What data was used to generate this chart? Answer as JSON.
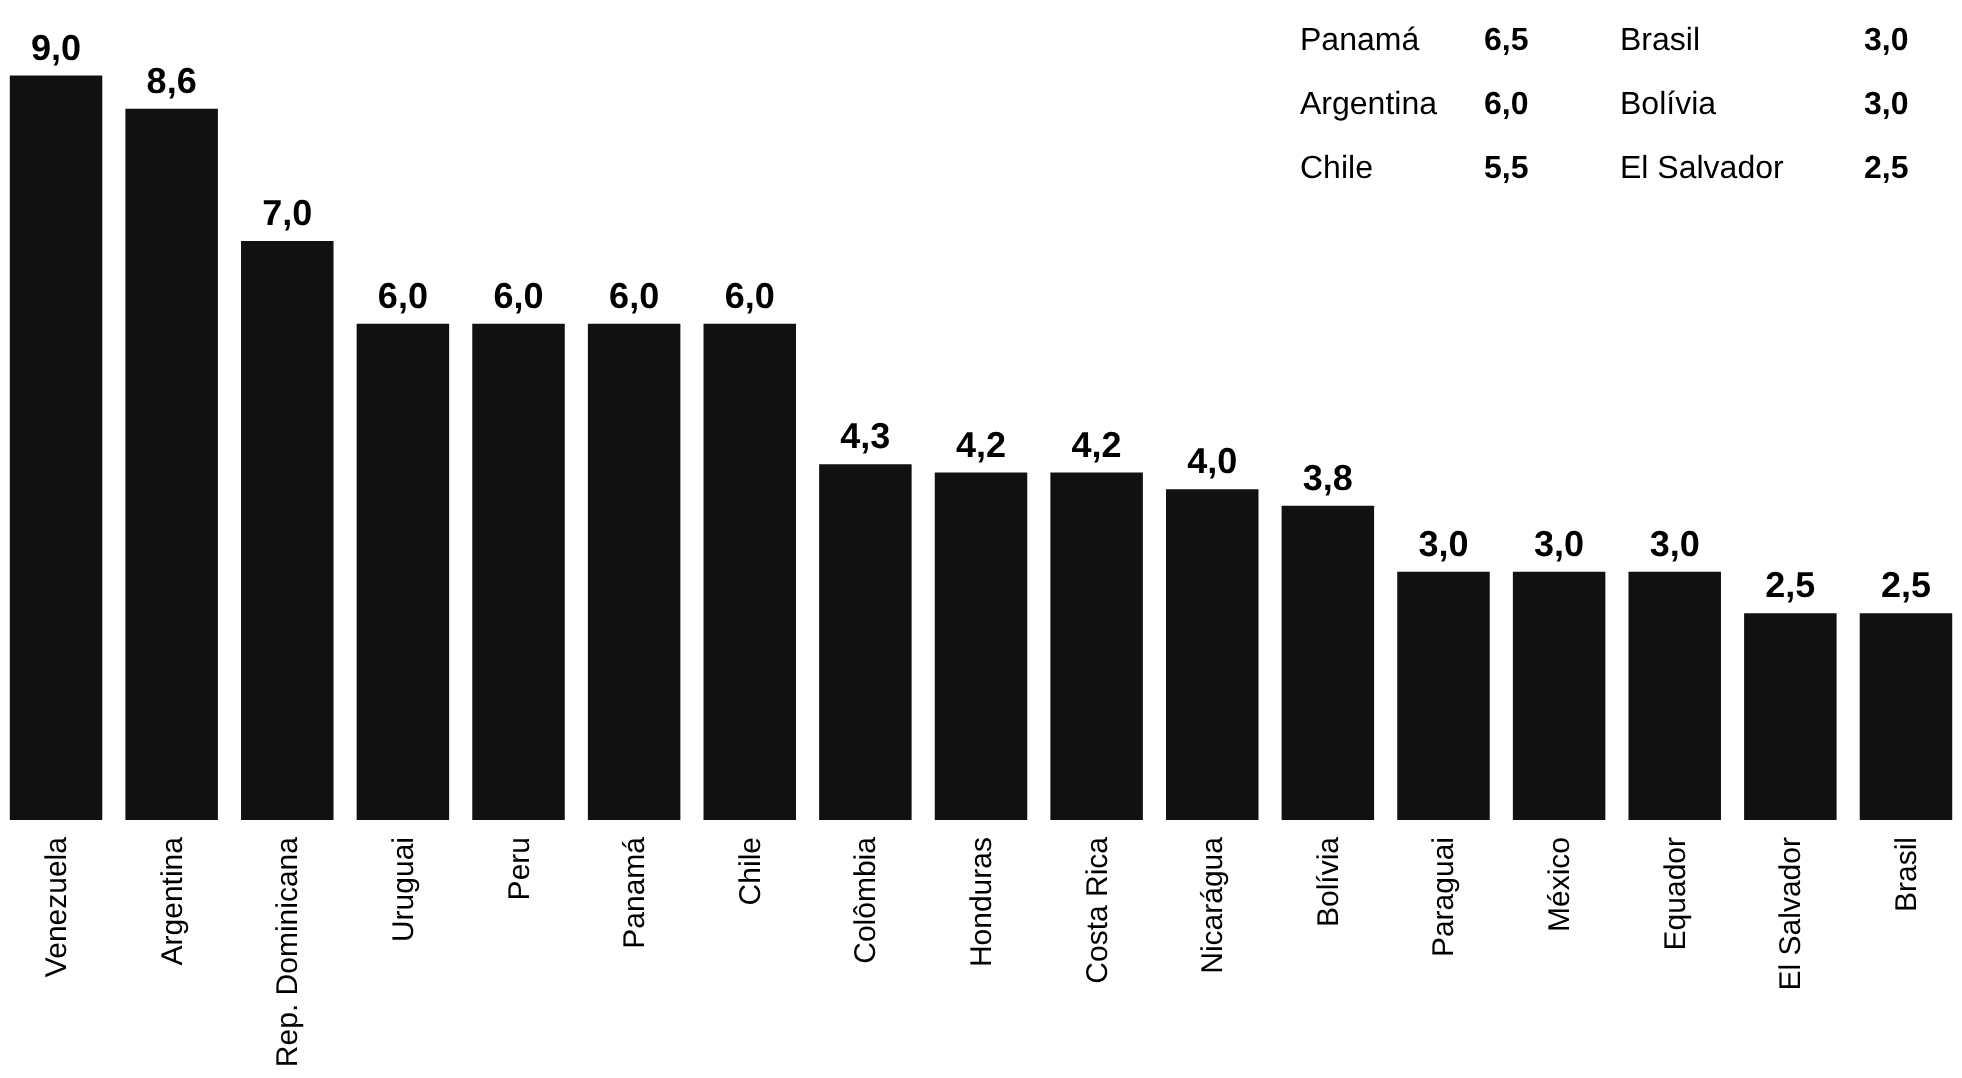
{
  "chart_data": {
    "type": "bar",
    "categories": [
      "Venezuela",
      "Argentina",
      "Rep. Dominicana",
      "Uruguai",
      "Peru",
      "Panamá",
      "Chile",
      "Colômbia",
      "Honduras",
      "Costa Rica",
      "Nicarágua",
      "Bolívia",
      "Paraguai",
      "México",
      "Equador",
      "El Salvador",
      "Brasil"
    ],
    "values": [
      9.0,
      8.6,
      7.0,
      6.0,
      6.0,
      6.0,
      6.0,
      4.3,
      4.2,
      4.2,
      4.0,
      3.8,
      3.0,
      3.0,
      3.0,
      2.5,
      2.5
    ],
    "value_labels": [
      "9,0",
      "8,6",
      "7,0",
      "6,0",
      "6,0",
      "6,0",
      "6,0",
      "4,3",
      "4,2",
      "4,2",
      "4,0",
      "3,8",
      "3,0",
      "3,0",
      "3,0",
      "2,5",
      "2,5"
    ],
    "color": "#111111",
    "annotations": [
      "Panamá",
      "6,5",
      "Brasil",
      "3,0",
      "Argentina",
      "6,0",
      "Bolívia",
      "3,0",
      "Chile",
      "5,5",
      "El Salvador",
      "2,5"
    ],
    "grid": false
  }
}
